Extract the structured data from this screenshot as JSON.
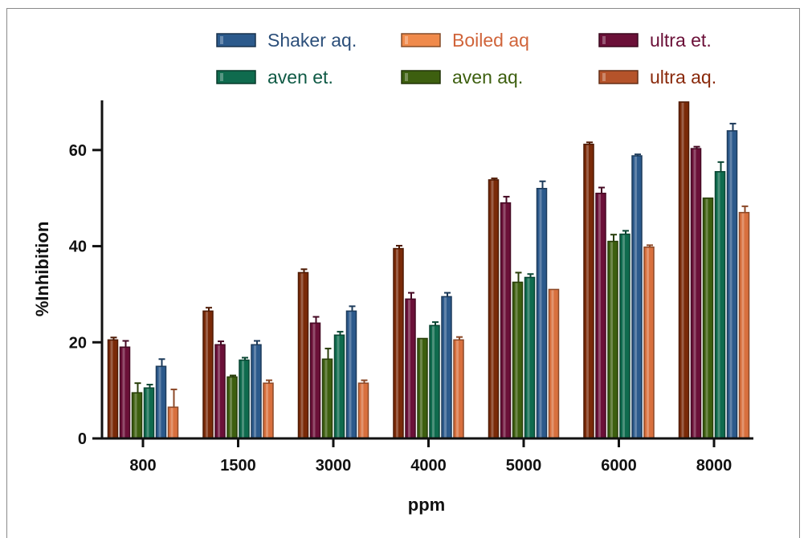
{
  "chart_data": {
    "type": "bar",
    "xlabel": "ppm",
    "ylabel": "%Inhibition",
    "categories": [
      "800",
      "1500",
      "3000",
      "4000",
      "5000",
      "6000",
      "8000"
    ],
    "yticks": [
      "0",
      "20",
      "40",
      "60"
    ],
    "ylim": [
      0,
      70
    ],
    "legend_position": "top",
    "series": [
      {
        "name": "ultra aq.",
        "color": "#7a2a08",
        "values": [
          20.5,
          26.5,
          34.5,
          39.5,
          53.8,
          61.2,
          70
        ],
        "errors": [
          0.5,
          0.7,
          0.7,
          0.6,
          0.3,
          0.4,
          0
        ]
      },
      {
        "name": "ultra et.",
        "color": "#6b1038",
        "values": [
          19,
          19.5,
          24,
          29,
          49,
          51,
          60.3
        ],
        "errors": [
          1.3,
          0.7,
          1.3,
          1.3,
          1.3,
          1.2,
          0.4
        ]
      },
      {
        "name": "aven aq.",
        "color": "#3d5f0f",
        "values": [
          9.5,
          12.8,
          16.5,
          20.8,
          32.5,
          41,
          50
        ],
        "errors": [
          2,
          0.3,
          2.2,
          0,
          2,
          1.4,
          0
        ]
      },
      {
        "name": "aven et.",
        "color": "#0f6b4e",
        "values": [
          10.5,
          16.3,
          21.5,
          23.5,
          33.5,
          42.5,
          55.5
        ],
        "errors": [
          0.7,
          0.5,
          0.7,
          0.7,
          0.7,
          0.7,
          2
        ]
      },
      {
        "name": "Shaker aq.",
        "color": "#2c5a8c",
        "values": [
          15,
          19.5,
          26.5,
          29.5,
          52,
          58.8,
          64
        ],
        "errors": [
          1.5,
          0.8,
          1.0,
          0.8,
          1.5,
          0.3,
          1.5
        ]
      },
      {
        "name": "Boiled aq",
        "color": "#d8703e",
        "values": [
          6.5,
          11.5,
          11.5,
          20.5,
          31,
          39.8,
          47
        ],
        "errors": [
          3.7,
          0.6,
          0.6,
          0.6,
          0,
          0.4,
          1.3
        ]
      }
    ],
    "legend": [
      {
        "name": "Shaker aq.",
        "color": "#2c5a8c",
        "text_color": "#2c4f7a"
      },
      {
        "name": "Boiled aq",
        "color": "#f08a4b",
        "text_color": "#d0643a"
      },
      {
        "name": "ultra et.",
        "color": "#6b1038",
        "text_color": "#6b1038"
      },
      {
        "name": "aven et.",
        "color": "#0f6b4e",
        "text_color": "#0f5a45"
      },
      {
        "name": "aven aq.",
        "color": "#3d5f0f",
        "text_color": "#3d5f0f"
      },
      {
        "name": "ultra aq.",
        "color": "#b5532a",
        "text_color": "#8a2a0c"
      }
    ]
  }
}
